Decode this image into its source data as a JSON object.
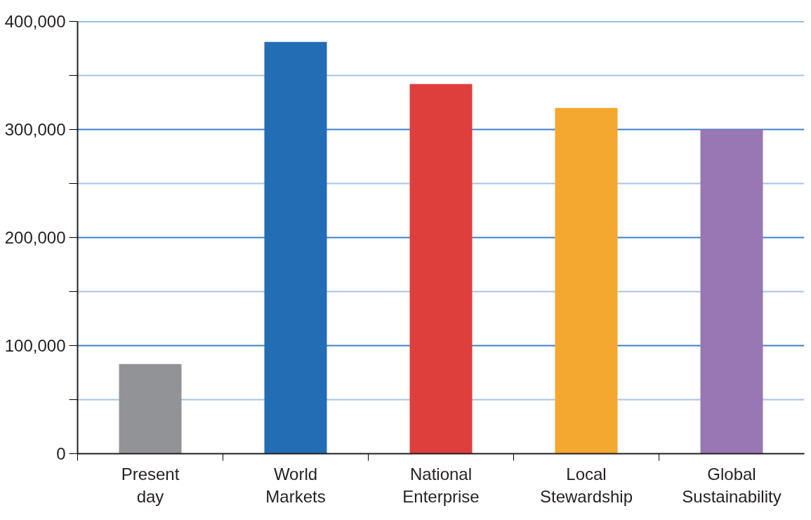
{
  "chart_data": {
    "type": "bar",
    "categories": [
      "Present\nday",
      "World\nMarkets",
      "National\nEnterprise",
      "Local\nStewardship",
      "Global\nSustainability"
    ],
    "values": [
      83000,
      381000,
      342000,
      320000,
      300000
    ],
    "colors": [
      "#929397",
      "#236db5",
      "#de3f3d",
      "#f5a82f",
      "#9877b4"
    ],
    "ylim": [
      0,
      400000
    ],
    "yticks": [
      0,
      {
        "value": 50000,
        "label": null
      },
      {
        "value": 100000,
        "label": "100,000"
      },
      {
        "value": 150000,
        "label": null
      },
      {
        "value": 200000,
        "label": "200,000"
      },
      {
        "value": 250000,
        "label": null
      },
      {
        "value": 300000,
        "label": "300,000"
      },
      {
        "value": 350000,
        "label": null
      },
      {
        "value": 400000,
        "label": "400,000"
      }
    ],
    "grid": "y"
  }
}
